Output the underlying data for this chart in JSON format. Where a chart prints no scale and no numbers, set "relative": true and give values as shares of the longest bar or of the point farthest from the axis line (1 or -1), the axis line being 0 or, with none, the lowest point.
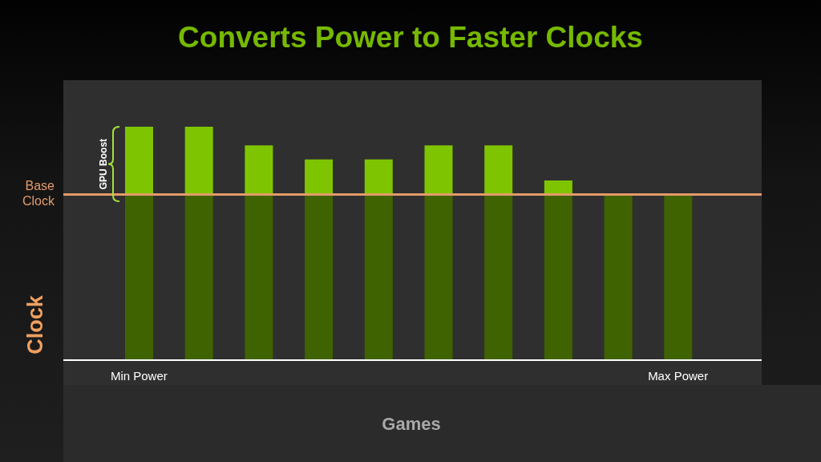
{
  "chart_data": {
    "type": "bar",
    "title": "Converts Power to Faster Clocks",
    "xlabel": "Games",
    "ylabel": "Clock",
    "annotations": [
      "GPU Boost"
    ],
    "categories": [
      "Min Power",
      null,
      null,
      null,
      null,
      null,
      null,
      null,
      null,
      "Max Power"
    ],
    "series": [
      {
        "color": "#3f6300",
        "values": [
          0.71,
          0.71,
          0.71,
          0.71,
          0.71,
          0.71,
          0.71,
          0.71,
          0.71,
          0.71
        ]
      },
      {
        "color": "#7fc400",
        "values": [
          0.29,
          0.29,
          0.21,
          0.15,
          0.15,
          0.21,
          0.21,
          0.06,
          null,
          null
        ]
      }
    ],
    "stacked": true,
    "relative": true,
    "ref_lines": [
      {
        "axis": "y",
        "value": 0.71,
        "label": "Base Clock",
        "color": "#e39b68"
      }
    ]
  }
}
